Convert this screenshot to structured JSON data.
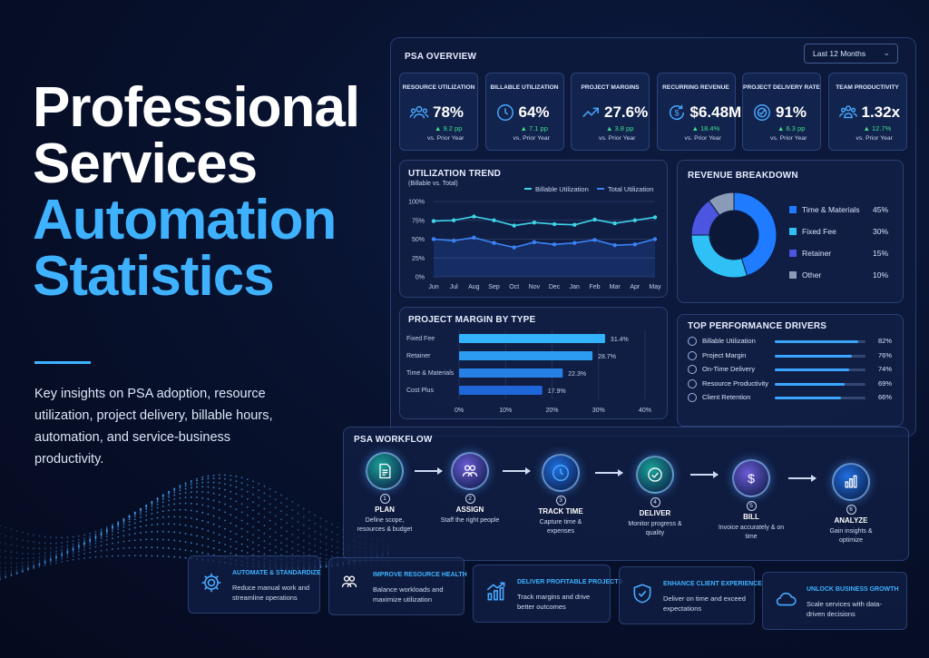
{
  "hero": {
    "line1": "Professional",
    "line2": "Services",
    "line3": "Automation",
    "line4": "Statistics",
    "subtitle": "Key insights on PSA adoption, resource utilization, project delivery, billable hours, automation, and service-business productivity."
  },
  "dashboard": {
    "title": "PSA OVERVIEW",
    "range_label": "Last 12 Months",
    "kpis": [
      {
        "label": "RESOURCE UTILIZATION",
        "value": "78%",
        "delta": "▲ 9.2 pp",
        "prior": "vs. Prior Year",
        "icon": "users-icon"
      },
      {
        "label": "BILLABLE UTILIZATION",
        "value": "64%",
        "delta": "▲ 7.1 pp",
        "prior": "vs. Prior Year",
        "icon": "clock-icon"
      },
      {
        "label": "PROJECT MARGINS",
        "value": "27.6%",
        "delta": "▲ 3.8 pp",
        "prior": "vs. Prior Year",
        "icon": "trend-up-icon"
      },
      {
        "label": "RECURRING REVENUE",
        "value": "$6.48M",
        "delta": "▲ 18.4%",
        "prior": "vs. Prior Year",
        "icon": "recurring-dollar-icon"
      },
      {
        "label": "PROJECT DELIVERY RATE",
        "value": "91%",
        "delta": "▲ 6.3 pp",
        "prior": "vs. Prior Year",
        "icon": "target-check-icon"
      },
      {
        "label": "TEAM PRODUCTIVITY",
        "value": "1.32x",
        "delta": "▲ 12.7%",
        "prior": "vs. Prior Year",
        "icon": "team-icon"
      }
    ],
    "utilization": {
      "title": "UTILIZATION TREND",
      "subtitle": "(Billable vs. Total)",
      "legend_billable": "Billable Utilization",
      "legend_total": "Total Utilization"
    },
    "revenue": {
      "title": "REVENUE BREAKDOWN",
      "items": [
        {
          "label": "Time & Materials",
          "pct": "45%",
          "color": "#1f7bff"
        },
        {
          "label": "Fixed Fee",
          "pct": "30%",
          "color": "#2fc0f5"
        },
        {
          "label": "Retainer",
          "pct": "15%",
          "color": "#4b55e0"
        },
        {
          "label": "Other",
          "pct": "10%",
          "color": "#8a9bb8"
        }
      ]
    },
    "margin": {
      "title": "PROJECT MARGIN BY TYPE"
    },
    "drivers": {
      "title": "TOP PERFORMANCE DRIVERS",
      "items": [
        {
          "label": "Billable Utilization",
          "value": "82%",
          "fill": 0.92
        },
        {
          "label": "Project Margin",
          "value": "76%",
          "fill": 0.85
        },
        {
          "label": "On-Time Delivery",
          "value": "74%",
          "fill": 0.82
        },
        {
          "label": "Resource Productivity",
          "value": "69%",
          "fill": 0.77
        },
        {
          "label": "Client Retention",
          "value": "66%",
          "fill": 0.73
        }
      ]
    }
  },
  "chart_data": [
    {
      "type": "line",
      "title": "UTILIZATION TREND",
      "subtitle": "(Billable vs. Total)",
      "x": [
        "Jun",
        "Jul",
        "Aug",
        "Sep",
        "Oct",
        "Nov",
        "Dec",
        "Jan",
        "Feb",
        "Mar",
        "Apr",
        "May"
      ],
      "y_ticks": [
        "100%",
        "75%",
        "50%",
        "25%",
        "0%"
      ],
      "ylim": [
        0,
        100
      ],
      "series": [
        {
          "name": "Billable Utilization",
          "values": [
            74,
            75,
            80,
            75,
            68,
            72,
            70,
            69,
            76,
            71,
            75,
            79
          ],
          "color": "#3fd5e8"
        },
        {
          "name": "Total Utilization",
          "values": [
            50,
            48,
            52,
            45,
            39,
            46,
            43,
            45,
            49,
            42,
            43,
            50
          ],
          "color": "#3b82f6"
        }
      ]
    },
    {
      "type": "pie",
      "title": "REVENUE BREAKDOWN",
      "categories": [
        "Time & Materials",
        "Fixed Fee",
        "Retainer",
        "Other"
      ],
      "values": [
        45,
        30,
        15,
        10
      ]
    },
    {
      "type": "bar",
      "title": "PROJECT MARGIN BY TYPE",
      "categories": [
        "Fixed Fee",
        "Retainer",
        "Time & Materials",
        "Cost Plus"
      ],
      "values": [
        31.4,
        28.7,
        22.3,
        17.9
      ],
      "value_labels": [
        "31.4%",
        "28.7%",
        "22.3%",
        "17.9%"
      ],
      "x_ticks": [
        "0%",
        "10%",
        "20%",
        "30%",
        "40%"
      ],
      "xlim": [
        0,
        40
      ]
    }
  ],
  "workflow": {
    "title": "PSA WORKFLOW",
    "steps": [
      {
        "num": "1",
        "name": "PLAN",
        "desc": "Define scope, resources & budget",
        "icon": "document-icon",
        "color": "#1aa39a"
      },
      {
        "num": "2",
        "name": "ASSIGN",
        "desc": "Staff the right people",
        "icon": "people-icon",
        "color": "#6b5bd6"
      },
      {
        "num": "3",
        "name": "TRACK TIME",
        "desc": "Capture time & expenses",
        "icon": "clock-icon",
        "color": "#1f6fe0"
      },
      {
        "num": "4",
        "name": "DELIVER",
        "desc": "Monitor progress & quality",
        "icon": "check-badge-icon",
        "color": "#1aa39a"
      },
      {
        "num": "5",
        "name": "BILL",
        "desc": "Invoice accurately & on time",
        "icon": "dollar-icon",
        "color": "#6b5bd6"
      },
      {
        "num": "6",
        "name": "ANALYZE",
        "desc": "Gain insights & optimize",
        "icon": "bar-chart-icon",
        "color": "#1f6fe0"
      }
    ]
  },
  "benefits": [
    {
      "title": "AUTOMATE & STANDARDIZE",
      "desc": "Reduce manual work and streamline operations",
      "icon": "gear-icon"
    },
    {
      "title": "IMPROVE RESOURCE HEALTH",
      "desc": "Balance workloads and maximize utilization",
      "icon": "people-icon"
    },
    {
      "title": "DELIVER PROFITABLE PROJECTS",
      "desc": "Track margins and drive better outcomes",
      "icon": "growth-chart-icon"
    },
    {
      "title": "ENHANCE CLIENT EXPERIENCE",
      "desc": "Deliver on time and exceed expectations",
      "icon": "shield-check-icon"
    },
    {
      "title": "UNLOCK BUSINESS GROWTH",
      "desc": "Scale services with data-driven decisions",
      "icon": "cloud-icon"
    }
  ]
}
